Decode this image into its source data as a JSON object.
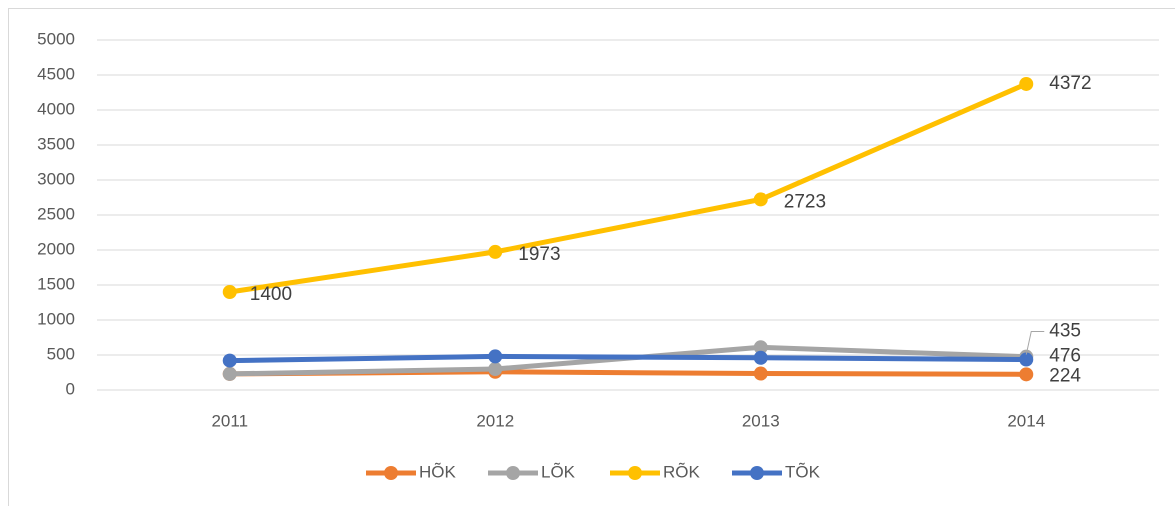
{
  "chart_data": {
    "type": "line",
    "categories": [
      "2011",
      "2012",
      "2013",
      "2014"
    ],
    "series": [
      {
        "name": "HÕK",
        "color": "#ED7D31",
        "values": [
          230,
          260,
          235,
          224
        ],
        "value_labels": [
          null,
          null,
          null,
          "224"
        ]
      },
      {
        "name": "LÕK",
        "color": "#A5A5A5",
        "values": [
          230,
          300,
          610,
          476
        ],
        "value_labels": [
          null,
          null,
          null,
          "476"
        ]
      },
      {
        "name": "RÕK",
        "color": "#FFC000",
        "values": [
          1400,
          1973,
          2723,
          4372
        ],
        "value_labels": [
          "1400",
          "1973",
          "2723",
          "4372"
        ]
      },
      {
        "name": "TÕK",
        "color": "#4472C4",
        "values": [
          420,
          480,
          460,
          435
        ],
        "value_labels": [
          null,
          null,
          null,
          "435"
        ]
      }
    ],
    "ylim": [
      0,
      5000
    ],
    "yticks": [
      0,
      500,
      1000,
      1500,
      2000,
      2500,
      3000,
      3500,
      4000,
      4500,
      5000
    ],
    "grid": true,
    "legend": "bottom"
  }
}
